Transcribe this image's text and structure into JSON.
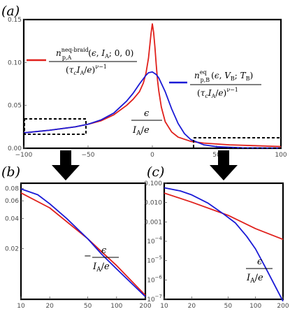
{
  "panels": {
    "a": "(a)",
    "b": "(b)",
    "c": "(c)"
  },
  "legend": {
    "red": {
      "symbol": "n",
      "sup": "neq-braid",
      "sub": "p,A",
      "args": "(ε, I_A; 0, 0)",
      "denom": "(τ_c I_A/e)^(ν−1)"
    },
    "blue": {
      "symbol": "n",
      "sup": "eq",
      "sub": "p,B",
      "args": "(ε, V_B; T_B)",
      "denom": "(τ_c I_A/e)^(ν−1)"
    }
  },
  "axis_labels": {
    "a_x": "ε / (I_A/e)",
    "b_x": "− ε / (I_A/e)",
    "c_x": "ε / (I_A/e)"
  },
  "colors": {
    "red": "#e0201b",
    "blue": "#1a1ad6",
    "arrow": "#000000"
  },
  "chart_data": [
    {
      "panel": "a",
      "type": "line",
      "xlim": [
        -100,
        100
      ],
      "ylim": [
        0,
        0.15
      ],
      "xticks": [
        -100,
        -50,
        0,
        50,
        100
      ],
      "yticks": [
        "0.00",
        "0.05",
        "0.10",
        "0.15"
      ],
      "series": [
        {
          "color": "red",
          "points": [
            [
              -100,
              0.018
            ],
            [
              -80,
              0.021
            ],
            [
              -60,
              0.025
            ],
            [
              -50,
              0.028
            ],
            [
              -40,
              0.032
            ],
            [
              -30,
              0.039
            ],
            [
              -20,
              0.05
            ],
            [
              -15,
              0.057
            ],
            [
              -10,
              0.066
            ],
            [
              -7,
              0.076
            ],
            [
              -5,
              0.087
            ],
            [
              -3,
              0.105
            ],
            [
              -1,
              0.134
            ],
            [
              0,
              0.145
            ],
            [
              1,
              0.135
            ],
            [
              2,
              0.118
            ],
            [
              3,
              0.098
            ],
            [
              4,
              0.08
            ],
            [
              5,
              0.067
            ],
            [
              7,
              0.048
            ],
            [
              10,
              0.031
            ],
            [
              15,
              0.019
            ],
            [
              20,
              0.013
            ],
            [
              30,
              0.008
            ],
            [
              40,
              0.006
            ],
            [
              60,
              0.004
            ],
            [
              80,
              0.003
            ],
            [
              100,
              0.002
            ]
          ]
        },
        {
          "color": "blue",
          "points": [
            [
              -100,
              0.018
            ],
            [
              -80,
              0.021
            ],
            [
              -60,
              0.025
            ],
            [
              -50,
              0.028
            ],
            [
              -40,
              0.033
            ],
            [
              -30,
              0.041
            ],
            [
              -20,
              0.055
            ],
            [
              -15,
              0.064
            ],
            [
              -10,
              0.075
            ],
            [
              -5,
              0.085
            ],
            [
              -3,
              0.088
            ],
            [
              0,
              0.089
            ],
            [
              3,
              0.086
            ],
            [
              5,
              0.082
            ],
            [
              10,
              0.066
            ],
            [
              15,
              0.046
            ],
            [
              20,
              0.029
            ],
            [
              25,
              0.017
            ],
            [
              30,
              0.01
            ],
            [
              40,
              0.004
            ],
            [
              50,
              0.0018
            ],
            [
              70,
              0.0005
            ],
            [
              100,
              0.0002
            ]
          ]
        }
      ]
    },
    {
      "panel": "b",
      "type": "line",
      "xscale": "log",
      "yscale": "log",
      "xlim": [
        10,
        200
      ],
      "ylim": [
        0.0062,
        0.09
      ],
      "xticks": [
        "10",
        "20",
        "50",
        "100",
        "200"
      ],
      "yticks": [
        "0.08",
        "0.06",
        "0.04",
        "0.02"
      ],
      "series": [
        {
          "color": "red",
          "points": [
            [
              10,
              0.072
            ],
            [
              20,
              0.051
            ],
            [
              50,
              0.025
            ],
            [
              70,
              0.0185
            ],
            [
              100,
              0.0135
            ],
            [
              200,
              0.0068
            ]
          ]
        },
        {
          "color": "blue",
          "points": [
            [
              10,
              0.079
            ],
            [
              15,
              0.069
            ],
            [
              20,
              0.056
            ],
            [
              30,
              0.04
            ],
            [
              50,
              0.025
            ],
            [
              70,
              0.0175
            ],
            [
              100,
              0.0125
            ],
            [
              200,
              0.0066
            ]
          ]
        }
      ]
    },
    {
      "panel": "c",
      "type": "line",
      "xscale": "log",
      "yscale": "log",
      "xlim": [
        10,
        200
      ],
      "ylim": [
        1e-07,
        0.1
      ],
      "xticks": [
        "10",
        "20",
        "50",
        "100",
        "200"
      ],
      "yticks": [
        "0.100",
        "0.010",
        "0.001",
        "10^-4",
        "10^-5",
        "10^-6",
        "10^-7"
      ],
      "series": [
        {
          "color": "red",
          "points": [
            [
              10,
              0.031
            ],
            [
              20,
              0.0105
            ],
            [
              50,
              0.0022
            ],
            [
              100,
              0.00045
            ],
            [
              200,
              0.000125
            ]
          ]
        },
        {
          "color": "blue",
          "points": [
            [
              10,
              0.058
            ],
            [
              15,
              0.04
            ],
            [
              20,
              0.025
            ],
            [
              30,
              0.0095
            ],
            [
              45,
              0.0025
            ],
            [
              60,
              0.0009
            ],
            [
              80,
              0.00018
            ],
            [
              100,
              4e-05
            ],
            [
              130,
              4e-06
            ],
            [
              160,
              6e-07
            ],
            [
              200,
              8e-08
            ]
          ]
        }
      ]
    }
  ]
}
